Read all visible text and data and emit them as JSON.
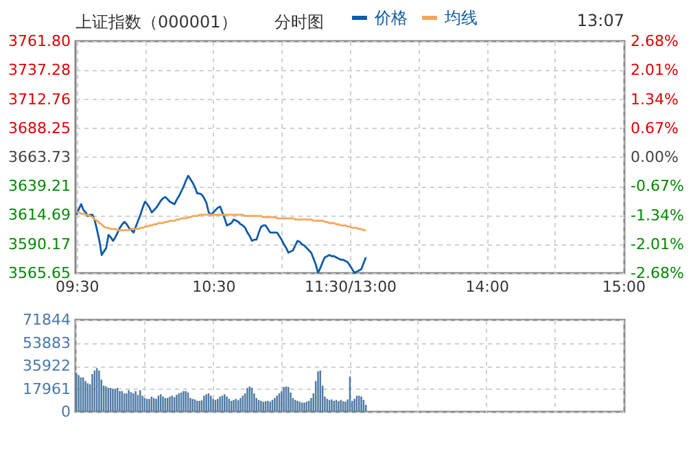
{
  "chart_data": [
    {
      "type": "line",
      "title": "上证指数（000001）",
      "subtitle": "分时图",
      "annotations": [
        "13:07"
      ],
      "legend": "top",
      "grid": true,
      "categories": [
        "09:30",
        null,
        null,
        null,
        null,
        null,
        null,
        null,
        null,
        null,
        null,
        null,
        null,
        null,
        null,
        null,
        null,
        null,
        null,
        null,
        null,
        null,
        null,
        null,
        null,
        null,
        null,
        null,
        null,
        null,
        null,
        null,
        null,
        null,
        null,
        null,
        null,
        null,
        null,
        null,
        null,
        null,
        null,
        null,
        null,
        null,
        null,
        null,
        null,
        null,
        null,
        null,
        null,
        null,
        null,
        null,
        null,
        null,
        null,
        null,
        "10:30",
        null,
        null,
        null,
        null,
        null,
        null,
        null,
        null,
        null,
        null,
        null,
        null,
        null,
        null,
        null,
        null,
        null,
        null,
        null,
        null,
        null,
        null,
        null,
        null,
        null,
        null,
        null,
        null,
        null,
        null,
        null,
        null,
        null,
        null,
        null,
        null,
        null,
        null,
        null,
        null,
        null,
        null,
        null,
        null,
        null,
        null,
        null,
        null,
        null,
        null,
        null,
        null,
        null,
        null,
        null,
        null,
        null,
        null,
        null,
        "11:30/13:00",
        null,
        null,
        null,
        null,
        null,
        null,
        null,
        null,
        null,
        null,
        null,
        null,
        null,
        null,
        null,
        null,
        null,
        null,
        null,
        null,
        null,
        null,
        null,
        null,
        null,
        null,
        null,
        null,
        null,
        null,
        null,
        null,
        null,
        null,
        null,
        null,
        null,
        null,
        null,
        null,
        null,
        null,
        null,
        null,
        null,
        null,
        null,
        null,
        null,
        null,
        null,
        null,
        null,
        null,
        null,
        null,
        null,
        null,
        null,
        "14:00",
        null,
        null,
        null,
        null,
        null,
        null,
        null,
        null,
        null,
        null,
        null,
        null,
        null,
        null,
        null,
        null,
        null,
        null,
        null,
        null,
        null,
        null,
        null,
        null,
        null,
        null,
        null,
        null,
        null,
        null,
        null,
        null,
        null,
        null,
        null,
        null,
        null,
        null,
        null,
        null,
        null,
        null,
        null,
        null,
        null,
        null,
        null,
        null,
        null,
        null,
        null,
        null,
        null,
        null,
        null,
        null,
        null,
        null,
        null,
        "15:00"
      ],
      "ylim": [
        3565.65,
        3761.8
      ],
      "yticks": [
        {
          "value": 3565.65,
          "label": "3565.65"
        },
        {
          "value": 3590.17,
          "label": "3590.17"
        },
        {
          "value": 3614.69,
          "label": "3614.69"
        },
        {
          "value": 3639.21,
          "label": "3639.21"
        },
        {
          "value": 3663.73,
          "label": "3663.73"
        },
        {
          "value": 3688.25,
          "label": "3688.25"
        },
        {
          "value": 3712.76,
          "label": "3712.76"
        },
        {
          "value": 3737.28,
          "label": "3737.28"
        },
        {
          "value": 3761.8,
          "label": "3761.80"
        }
      ],
      "y2lim": [
        -2.68,
        2.68
      ],
      "y2ticks": [
        {
          "value": -2.68,
          "label": "-2.68%"
        },
        {
          "value": -2.01,
          "label": "-2.01%"
        },
        {
          "value": -1.34,
          "label": "-1.34%"
        },
        {
          "value": -0.67,
          "label": "-0.67%"
        },
        {
          "value": 0,
          "label": "0.00%"
        },
        {
          "value": 0.67,
          "label": "0.67%"
        },
        {
          "value": 1.34,
          "label": "1.34%"
        },
        {
          "value": 2.01,
          "label": "2.01%"
        },
        {
          "value": 2.68,
          "label": "2.68%"
        }
      ],
      "series": [
        {
          "name": "价格",
          "color": "#0f5ba7",
          "values": [
            3615,
            3620,
            3624,
            3619,
            3617,
            3614,
            3615,
            3615,
            3610,
            3602,
            3593,
            3581,
            3584,
            3587,
            3598,
            3596,
            3593,
            3596,
            3600,
            3604,
            3607,
            3609,
            3607,
            3604,
            3602,
            3600,
            3605,
            3610,
            3615,
            3621,
            3626,
            3624,
            3621,
            3617,
            3619,
            3621,
            3624,
            3627,
            3629,
            3630,
            3628,
            3626,
            3625,
            3624,
            3628,
            3631,
            3635,
            3639,
            3644,
            3648,
            3645,
            3642,
            3638,
            3633,
            3633,
            3632,
            3629,
            3625,
            3617,
            3615,
            3617,
            3619,
            3621,
            3622,
            3617,
            3612,
            3606,
            3607,
            3608,
            3611,
            3610,
            3609,
            3607,
            3606,
            3604,
            3600,
            3597,
            3593,
            3594,
            3594,
            3600,
            3605,
            3606,
            3606,
            3603,
            3600,
            3600,
            3600,
            3600,
            3597,
            3594,
            3590,
            3587,
            3583,
            3584,
            3585,
            3589,
            3593,
            3592,
            3590,
            3589,
            3587,
            3585,
            3583,
            3578,
            3573,
            3566,
            3570,
            3575,
            3579,
            3580,
            3581,
            3580,
            3580,
            3579,
            3578,
            3577,
            3577,
            3576,
            3575,
            3572,
            3569,
            3566,
            3567,
            3568,
            3569,
            3574,
            3579,
            null,
            null,
            null,
            null,
            null,
            null,
            null,
            null,
            null,
            null,
            null,
            null,
            null,
            null,
            null,
            null,
            null,
            null,
            null,
            null,
            null,
            null,
            null,
            null,
            null,
            null,
            null,
            null,
            null,
            null,
            null,
            null,
            null,
            null,
            null,
            null,
            null,
            null,
            null,
            null,
            null,
            null,
            null,
            null,
            null,
            null,
            null,
            null,
            null,
            null,
            null,
            null,
            null,
            null,
            null,
            null,
            null,
            null,
            null,
            null,
            null,
            null,
            null,
            null,
            null,
            null,
            null,
            null,
            null,
            null,
            null,
            null,
            null,
            null,
            null,
            null,
            null,
            null,
            null,
            null,
            null,
            null,
            null,
            null,
            null,
            null,
            null,
            null,
            null,
            null,
            null,
            null,
            null,
            null,
            null,
            null,
            null,
            null,
            null,
            null,
            null,
            null,
            null,
            null,
            null,
            null,
            null,
            null,
            null,
            null,
            null,
            null,
            null
          ]
        },
        {
          "name": "均线",
          "color": "#f5a65b",
          "values": [
            3617,
            3617,
            3616,
            3616,
            3615,
            3615,
            3614,
            3613,
            3611,
            3610,
            3608,
            3607,
            3605,
            3604,
            3604,
            3603,
            3603,
            3603,
            3602,
            3602,
            3602,
            3602,
            3602,
            3602,
            3603,
            3603,
            3603,
            3603,
            3604,
            3604,
            3605,
            3605,
            3606,
            3606,
            3607,
            3607,
            3608,
            3608,
            3608,
            3609,
            3609,
            3610,
            3610,
            3610,
            3611,
            3611,
            3612,
            3612,
            3612,
            3613,
            3613,
            3614,
            3614,
            3614,
            3615,
            3615,
            3615,
            3615,
            3615,
            3615,
            3615,
            3615,
            3615,
            3615,
            3615,
            3615,
            3615,
            3615,
            3615,
            3615,
            3615,
            3615,
            3615,
            3615,
            3614,
            3614,
            3614,
            3614,
            3614,
            3614,
            3614,
            3614,
            3613,
            3613,
            3613,
            3613,
            3613,
            3613,
            3612,
            3612,
            3612,
            3612,
            3612,
            3612,
            3612,
            3612,
            3611,
            3611,
            3611,
            3611,
            3611,
            3611,
            3611,
            3611,
            3610,
            3610,
            3610,
            3610,
            3610,
            3609,
            3609,
            3608,
            3608,
            3608,
            3607,
            3607,
            3606,
            3606,
            3606,
            3605,
            3605,
            3604,
            3604,
            3604,
            3603,
            3603,
            3602,
            3602,
            null,
            null,
            null,
            null,
            null,
            null,
            null,
            null,
            null,
            null,
            null,
            null,
            null,
            null,
            null,
            null,
            null,
            null,
            null,
            null,
            null,
            null,
            null,
            null,
            null,
            null,
            null,
            null,
            null,
            null,
            null,
            null,
            null,
            null,
            null,
            null,
            null,
            null,
            null,
            null,
            null,
            null,
            null,
            null,
            null,
            null,
            null,
            null,
            null,
            null,
            null,
            null,
            null,
            null,
            null,
            null,
            null,
            null,
            null,
            null,
            null,
            null,
            null,
            null,
            null,
            null,
            null,
            null,
            null,
            null,
            null,
            null,
            null,
            null,
            null,
            null,
            null,
            null,
            null,
            null,
            null,
            null,
            null,
            null,
            null,
            null,
            null,
            null,
            null,
            null,
            null,
            null,
            null,
            null,
            null,
            null,
            null,
            null,
            null,
            null,
            null,
            null,
            null,
            null,
            null,
            null,
            null,
            null,
            null,
            null,
            null,
            null,
            null
          ]
        }
      ]
    },
    {
      "type": "bar",
      "tick_labels": "y",
      "grid": true,
      "color": "#4f7aa3",
      "ylim": [
        0,
        71844
      ],
      "yticks": [
        0,
        17961,
        35922,
        53883,
        71844
      ],
      "categories": [
        null,
        null,
        null,
        null,
        null,
        null,
        null,
        null,
        null,
        null,
        null,
        null,
        null,
        null,
        null,
        null,
        null,
        null,
        null,
        null,
        null,
        null,
        null,
        null,
        null,
        null,
        null,
        null,
        null,
        null,
        null,
        null,
        null,
        null,
        null,
        null,
        null,
        null,
        null,
        null,
        null,
        null,
        null,
        null,
        null,
        null,
        null,
        null,
        null,
        null,
        null,
        null,
        null,
        null,
        null,
        null,
        null,
        null,
        null,
        null,
        null,
        null,
        null,
        null,
        null,
        null,
        null,
        null,
        null,
        null,
        null,
        null,
        null,
        null,
        null,
        null,
        null,
        null,
        null,
        null,
        null,
        null,
        null,
        null,
        null,
        null,
        null,
        null,
        null,
        null,
        null,
        null,
        null,
        null,
        null,
        null,
        null,
        null,
        null,
        null,
        null,
        null,
        null,
        null,
        null,
        null,
        null,
        null,
        null,
        null,
        null,
        null,
        null,
        null,
        null,
        null,
        null,
        null,
        null,
        null,
        null,
        null,
        null,
        null,
        null,
        null,
        null,
        null,
        null,
        null,
        null,
        null,
        null,
        null,
        null,
        null,
        null,
        null,
        null,
        null,
        null,
        null,
        null,
        null,
        null,
        null,
        null,
        null,
        null,
        null,
        null,
        null,
        null,
        null,
        null,
        null,
        null,
        null,
        null,
        null,
        null,
        null,
        null,
        null,
        null,
        null,
        null,
        null,
        null,
        null,
        null,
        null,
        null,
        null,
        null,
        null,
        null,
        null,
        null,
        null,
        null,
        null,
        null,
        null,
        null,
        null,
        null,
        null,
        null,
        null,
        null,
        null,
        null,
        null,
        null,
        null,
        null,
        null,
        null,
        null,
        null,
        null,
        null,
        null,
        null,
        null,
        null,
        null,
        null,
        null,
        null,
        null,
        null,
        null,
        null,
        null,
        null,
        null,
        null,
        null,
        null,
        null,
        null,
        null,
        null,
        null,
        null,
        null,
        null,
        null,
        null,
        null,
        null,
        null,
        null,
        null,
        null,
        null,
        null,
        null,
        null
      ],
      "values": [
        30500,
        28700,
        26900,
        26900,
        24000,
        22300,
        21500,
        29500,
        32300,
        34100,
        32300,
        25100,
        20500,
        19800,
        18700,
        18700,
        18000,
        18000,
        18700,
        16200,
        16200,
        14400,
        14400,
        16900,
        15400,
        14400,
        16200,
        13300,
        16900,
        12600,
        10800,
        10100,
        10100,
        11900,
        10800,
        10100,
        12600,
        13700,
        11900,
        10800,
        10800,
        11900,
        12600,
        11500,
        13300,
        14400,
        15100,
        16200,
        16200,
        15100,
        10800,
        10100,
        9700,
        8600,
        8600,
        9000,
        12600,
        13700,
        14400,
        12600,
        10100,
        9300,
        10100,
        11900,
        12600,
        13700,
        11900,
        10100,
        8600,
        9300,
        10100,
        9000,
        10800,
        12600,
        14400,
        18700,
        19800,
        18700,
        14400,
        10800,
        9300,
        8600,
        7900,
        8300,
        8600,
        7900,
        9300,
        10800,
        12600,
        14400,
        16200,
        19400,
        19800,
        19400,
        15100,
        10800,
        9300,
        8600,
        7900,
        7200,
        7200,
        7900,
        8600,
        10800,
        14400,
        24000,
        31600,
        32300,
        20500,
        11900,
        10100,
        9300,
        9700,
        8600,
        9300,
        8300,
        9300,
        8300,
        7900,
        9700,
        27600,
        8600,
        10100,
        12600,
        12600,
        11900,
        9300,
        5400,
        null,
        null,
        null,
        null,
        null,
        null,
        null,
        null,
        null,
        null,
        null,
        null,
        null,
        null,
        null,
        null,
        null,
        null,
        null,
        null,
        null,
        null,
        null,
        null,
        null,
        null,
        null,
        null,
        null,
        null,
        null,
        null,
        null,
        null,
        null,
        null,
        null,
        null,
        null,
        null,
        null,
        null,
        null,
        null,
        null,
        null,
        null,
        null,
        null,
        null,
        null,
        null,
        null,
        null,
        null,
        null,
        null,
        null,
        null,
        null,
        null,
        null,
        null,
        null,
        null,
        null,
        null,
        null,
        null,
        null,
        null,
        null,
        null,
        null,
        null,
        null,
        null,
        null,
        null,
        null,
        null,
        null,
        null,
        null,
        null,
        null,
        null,
        null,
        null,
        null,
        null,
        null,
        null,
        null,
        null,
        null,
        null,
        null,
        null,
        null,
        null,
        null,
        null,
        null,
        null,
        null,
        null,
        null,
        null,
        null,
        null,
        null,
        null
      ]
    }
  ]
}
